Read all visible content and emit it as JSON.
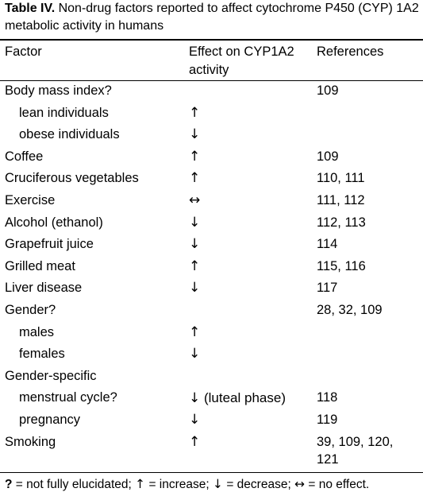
{
  "caption": {
    "label": "Table IV.",
    "text": " Non-drug factors reported to affect cytochrome P450 (CYP) 1A2 metabolic activity in humans"
  },
  "headers": {
    "factor": "Factor",
    "effect_line1": "Effect on CYP1A2",
    "effect_line2": "activity",
    "references": "References"
  },
  "rows": [
    {
      "factor": "Body mass index?",
      "effect": "",
      "refs": "109"
    },
    {
      "factor": "lean individuals",
      "effect": "↑",
      "refs": ""
    },
    {
      "factor": "obese individuals",
      "effect": "↓",
      "refs": ""
    },
    {
      "factor": "Coffee",
      "effect": "↑",
      "refs": "109"
    },
    {
      "factor": "Cruciferous vegetables",
      "effect": "↑",
      "refs": "110, 111"
    },
    {
      "factor": "Exercise",
      "effect": "↔",
      "refs": "111, 112"
    },
    {
      "factor": "Alcohol (ethanol)",
      "effect": "↓",
      "refs": "112, 113"
    },
    {
      "factor": "Grapefruit juice",
      "effect": "↓",
      "refs": "114"
    },
    {
      "factor": "Grilled meat",
      "effect": "↑",
      "refs": "115, 116"
    },
    {
      "factor": "Liver disease",
      "effect": "↓",
      "refs": "117"
    },
    {
      "factor": "Gender?",
      "effect": "",
      "refs": "28, 32, 109"
    },
    {
      "factor": "males",
      "effect": "↑",
      "refs": ""
    },
    {
      "factor": "females",
      "effect": "↓",
      "refs": ""
    },
    {
      "factor": "Gender-specific",
      "effect": "",
      "refs": ""
    },
    {
      "factor": "menstrual cycle?",
      "effect": "↓ (luteal phase)",
      "refs": "118"
    },
    {
      "factor": "pregnancy",
      "effect": "↓",
      "refs": "119"
    },
    {
      "factor": "Smoking",
      "effect": "↑",
      "refs": "39, 109, 120,"
    },
    {
      "factor": "",
      "effect": "",
      "refs": "121"
    }
  ],
  "footnote": {
    "q": "?",
    "t1": " = not fully elucidated; ",
    "up": "↑",
    "t2": " = increase; ",
    "down": "↓",
    "t3": " = decrease; ",
    "both": "↔",
    "t4": " = no effect."
  }
}
